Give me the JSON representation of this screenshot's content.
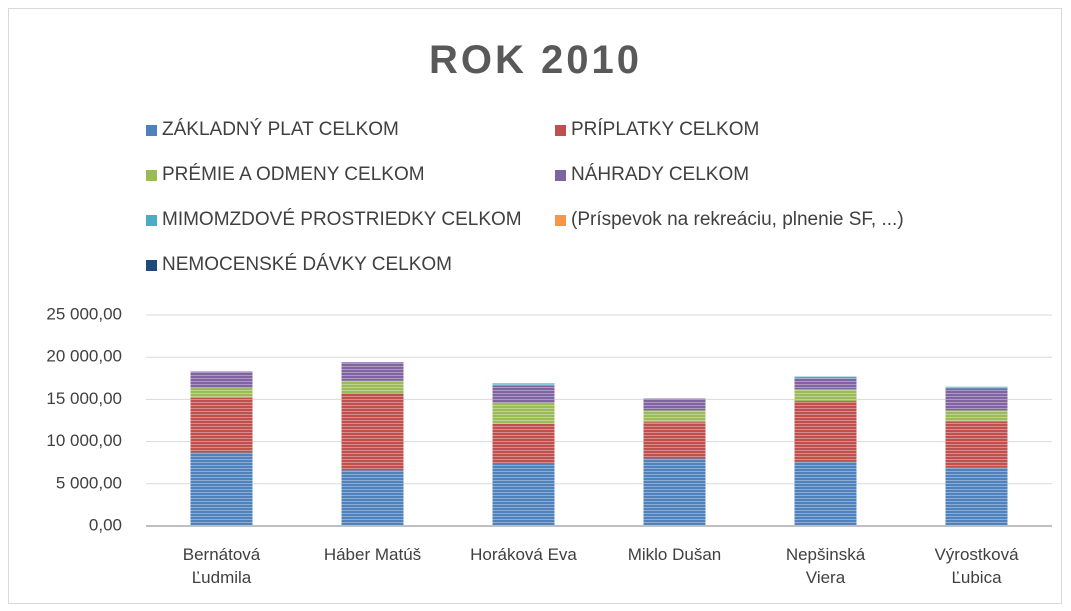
{
  "chart_data": {
    "type": "stacked_bar",
    "title": "ROK 2010",
    "categories": [
      "Bernátová Ľudmila",
      "Háber Matúš",
      "Horáková Eva",
      "Miklo Dušan",
      "Nepšinská Viera",
      "Výrostková Ľubica"
    ],
    "series": [
      {
        "name": "ZÁKLADNÝ PLAT CELKOM",
        "color": "#4f81bd",
        "values": [
          8700,
          6600,
          7400,
          8000,
          7700,
          6900
        ]
      },
      {
        "name": "PRÍPLATKY CELKOM",
        "color": "#c0504d",
        "values": [
          6500,
          9100,
          4700,
          4300,
          7100,
          5500
        ]
      },
      {
        "name": "PRÉMIE A ODMENY CELKOM",
        "color": "#9bbb59",
        "values": [
          1200,
          1500,
          2500,
          1400,
          1400,
          1300
        ]
      },
      {
        "name": "NÁHRADY CELKOM",
        "color": "#8064a2",
        "values": [
          1900,
          2200,
          2000,
          1400,
          1300,
          2600
        ]
      },
      {
        "name": "MIMOMZDOVÉ PROSTRIEDKY CELKOM",
        "color": "#4bacc6",
        "values": [
          0,
          0,
          300,
          0,
          200,
          200
        ]
      },
      {
        "name": "(Príspevok na rekreáciu, plnenie SF, ...)",
        "color": "#f79646",
        "values": [
          0,
          0,
          0,
          0,
          0,
          0
        ]
      },
      {
        "name": "NEMOCENSKÉ DÁVKY CELKOM",
        "color": "#1f497d",
        "values": [
          0,
          0,
          0,
          0,
          0,
          0
        ]
      }
    ],
    "ylim": [
      0,
      25000
    ],
    "yticks": [
      {
        "value": 0,
        "label": "0,00"
      },
      {
        "value": 5000,
        "label": "5 000,00"
      },
      {
        "value": 10000,
        "label": "10 000,00"
      },
      {
        "value": 15000,
        "label": "15 000,00"
      },
      {
        "value": 20000,
        "label": "20 000,00"
      },
      {
        "value": 25000,
        "label": "25 000,00"
      }
    ],
    "grid": true
  }
}
